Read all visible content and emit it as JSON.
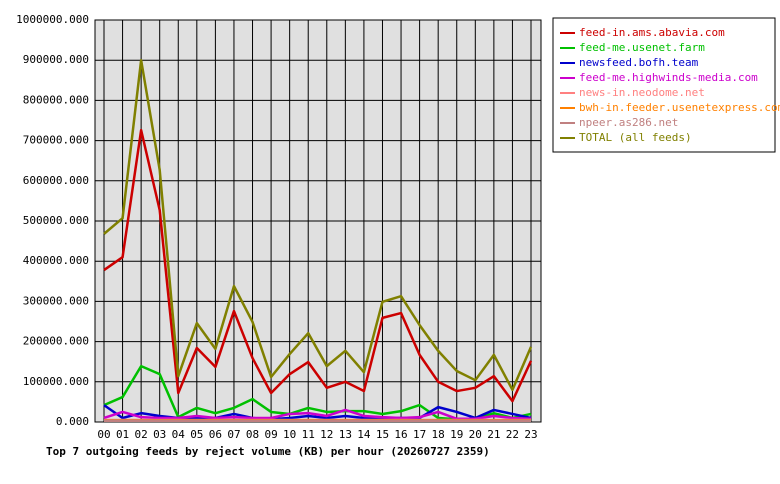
{
  "chart_data": {
    "type": "line",
    "title": "Top 7 outgoing feeds by reject volume (KB) per hour (20260727 2359)",
    "categories": [
      "00",
      "01",
      "02",
      "03",
      "04",
      "05",
      "06",
      "07",
      "08",
      "09",
      "10",
      "11",
      "12",
      "13",
      "14",
      "15",
      "16",
      "17",
      "18",
      "19",
      "20",
      "21",
      "22",
      "23"
    ],
    "ylim": [
      0,
      1000000
    ],
    "yticks": [
      {
        "value": 0,
        "label": "0.000"
      },
      {
        "value": 100000,
        "label": "100000.000"
      },
      {
        "value": 200000,
        "label": "200000.000"
      },
      {
        "value": 300000,
        "label": "300000.000"
      },
      {
        "value": 400000,
        "label": "400000.000"
      },
      {
        "value": 500000,
        "label": "500000.000"
      },
      {
        "value": 600000,
        "label": "600000.000"
      },
      {
        "value": 700000,
        "label": "700000.000"
      },
      {
        "value": 800000,
        "label": "800000.000"
      },
      {
        "value": 900000,
        "label": "900000.000"
      },
      {
        "value": 1000000,
        "label": "1000000.000"
      }
    ],
    "grid": true,
    "legend": "top-right",
    "series": [
      {
        "name": "feed-in.ams.abavia.com",
        "color": "#cc0000",
        "values": [
          378000,
          410000,
          726000,
          527000,
          72000,
          184000,
          137000,
          276000,
          159000,
          72000,
          119000,
          149000,
          85000,
          100000,
          77000,
          259000,
          271000,
          167000,
          100000,
          77000,
          85000,
          114000,
          52000,
          152000
        ]
      },
      {
        "name": "feed-me.usenet.farm",
        "color": "#00c000",
        "values": [
          42000,
          62000,
          139000,
          119000,
          12000,
          35000,
          22000,
          35000,
          57000,
          25000,
          20000,
          35000,
          25000,
          27000,
          27000,
          20000,
          27000,
          42000,
          10000,
          7000,
          7000,
          22000,
          10000,
          20000
        ]
      },
      {
        "name": "newsfeed.bofh.team",
        "color": "#0000cc",
        "values": [
          42000,
          10000,
          22000,
          15000,
          10000,
          10000,
          10000,
          20000,
          10000,
          7000,
          10000,
          15000,
          10000,
          15000,
          10000,
          10000,
          10000,
          10000,
          37000,
          25000,
          10000,
          30000,
          20000,
          10000
        ]
      },
      {
        "name": "feed-me.highwinds-media.com",
        "color": "#cc00cc",
        "values": [
          10000,
          25000,
          12000,
          10000,
          10000,
          15000,
          10000,
          12000,
          10000,
          10000,
          20000,
          22000,
          15000,
          30000,
          15000,
          12000,
          10000,
          12000,
          25000,
          8000,
          8000,
          15000,
          10000,
          8000
        ]
      },
      {
        "name": "news-in.neodome.net",
        "color": "#ff8080",
        "values": [
          5000,
          5000,
          5000,
          5000,
          5000,
          5000,
          5000,
          5000,
          5000,
          5000,
          5000,
          5000,
          5000,
          5000,
          5000,
          5000,
          5000,
          5000,
          5000,
          5000,
          5000,
          5000,
          5000,
          5000
        ]
      },
      {
        "name": "bwh-in.feeder.usenetexpress.com",
        "color": "#ff8000",
        "values": [
          4000,
          4000,
          4000,
          4000,
          4000,
          4000,
          4000,
          4000,
          4000,
          4000,
          4000,
          4000,
          4000,
          4000,
          4000,
          4000,
          4000,
          4000,
          4000,
          4000,
          4000,
          4000,
          4000,
          4000
        ]
      },
      {
        "name": "npeer.as286.net",
        "color": "#c08080",
        "values": [
          3000,
          3000,
          3000,
          3000,
          3000,
          3000,
          3000,
          3000,
          3000,
          3000,
          3000,
          3000,
          3000,
          3000,
          3000,
          3000,
          3000,
          3000,
          3000,
          3000,
          3000,
          3000,
          3000,
          3000
        ]
      },
      {
        "name": "TOTAL (all feeds)",
        "color": "#808000",
        "values": [
          468000,
          507000,
          900000,
          627000,
          114000,
          246000,
          182000,
          338000,
          249000,
          112000,
          169000,
          221000,
          139000,
          177000,
          124000,
          299000,
          313000,
          241000,
          177000,
          127000,
          104000,
          167000,
          80000,
          187000
        ]
      }
    ]
  }
}
